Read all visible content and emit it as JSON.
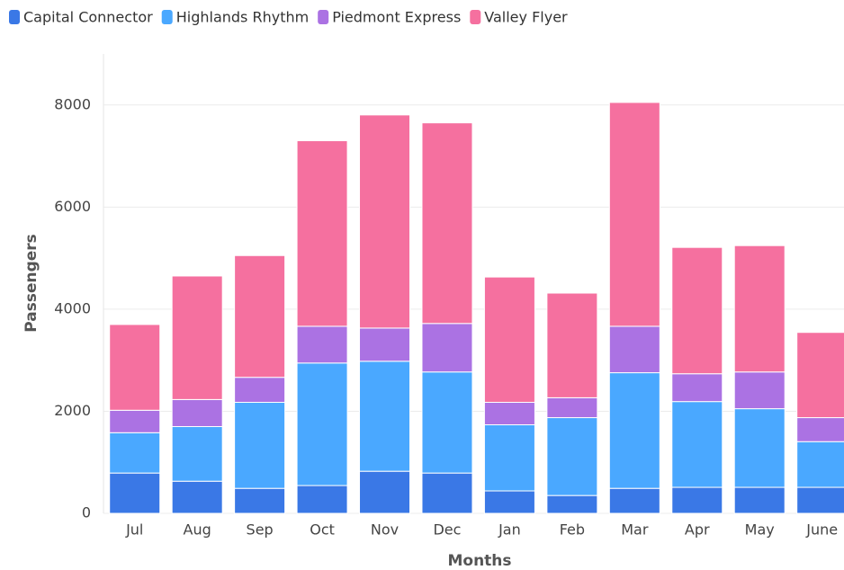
{
  "chart_data": {
    "type": "stacked_bar",
    "x_label": "Months",
    "y_label": "Passengers",
    "categories": [
      "Jul",
      "Aug",
      "Sep",
      "Oct",
      "Nov",
      "Dec",
      "Jan",
      "Feb",
      "Mar",
      "Apr",
      "May",
      "June"
    ],
    "series": [
      {
        "name": "Capital Connector",
        "color": "#3a78e6",
        "values": [
          790,
          630,
          490,
          545,
          825,
          790,
          440,
          350,
          490,
          510,
          510,
          510
        ]
      },
      {
        "name": "Highlands Rhythm",
        "color": "#4aa8ff",
        "values": [
          790,
          1070,
          1685,
          2400,
          2155,
          1980,
          1295,
          1525,
          2265,
          1680,
          1540,
          895
        ]
      },
      {
        "name": "Piedmont Express",
        "color": "#ab72e3",
        "values": [
          440,
          530,
          490,
          720,
          650,
          950,
          440,
          390,
          910,
          545,
          720,
          470
        ]
      },
      {
        "name": "Valley Flyer",
        "color": "#f5709f",
        "values": [
          1680,
          2420,
          2385,
          3635,
          4175,
          3930,
          2455,
          2050,
          4385,
          2475,
          2475,
          1670
        ]
      }
    ],
    "ylim": [
      0,
      9000
    ],
    "yticks": [
      0,
      2000,
      4000,
      6000,
      8000
    ],
    "grid": true,
    "legend": "top-left"
  }
}
